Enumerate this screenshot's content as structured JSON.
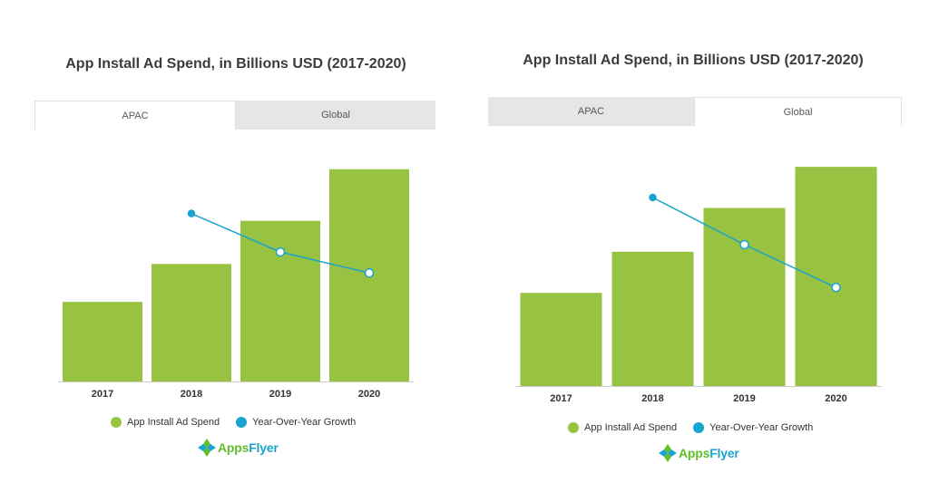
{
  "brand": {
    "name_part1": "Apps",
    "name_part2": "Flyer"
  },
  "colors": {
    "bar": "#97c242",
    "line": "#1aa3cf",
    "axis": "#cccccc"
  },
  "legend": {
    "spend": "App Install Ad Spend",
    "growth": "Year-Over-Year Growth"
  },
  "panels": [
    {
      "tabs": [
        {
          "label": "APAC",
          "active": true
        },
        {
          "label": "Global",
          "active": false
        }
      ]
    },
    {
      "tabs": [
        {
          "label": "APAC",
          "active": false
        },
        {
          "label": "Global",
          "active": true
        }
      ]
    }
  ],
  "chart_data": [
    {
      "type": "bar",
      "title": "App Install Ad Spend, in Billions USD (2017-2020)",
      "categories": [
        "2017",
        "2018",
        "2019",
        "2020"
      ],
      "series": [
        {
          "name": "App Install Ad Spend",
          "kind": "bar",
          "values": [
            10.5,
            15.5,
            21.2,
            28.0
          ]
        },
        {
          "name": "Year-Over-Year Growth",
          "kind": "line",
          "values": [
            null,
            48,
            37,
            31
          ]
        }
      ],
      "ylim_spend": [
        0,
        30
      ],
      "ylim_growth": [
        0,
        65
      ],
      "grid": false
    },
    {
      "type": "bar",
      "title": "App Install Ad Spend, in Billions USD (2017-2020)",
      "categories": [
        "2017",
        "2018",
        "2019",
        "2020"
      ],
      "series": [
        {
          "name": "App Install Ad Spend",
          "kind": "bar",
          "values": [
            17.0,
            24.5,
            32.5,
            40.0
          ]
        },
        {
          "name": "Year-Over-Year Growth",
          "kind": "line",
          "values": [
            null,
            44,
            33,
            23
          ]
        }
      ],
      "ylim_spend": [
        0,
        43
      ],
      "ylim_growth": [
        0,
        55
      ],
      "grid": false
    }
  ]
}
